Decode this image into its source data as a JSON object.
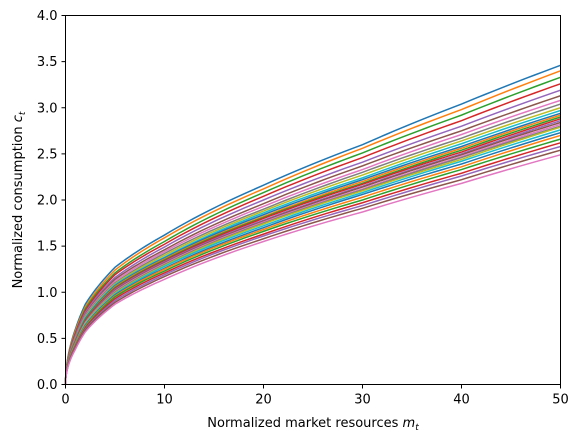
{
  "chart_data": {
    "type": "line",
    "title": "",
    "xlabel": "Normalized market resources",
    "xlabel_symbol": "m",
    "xlabel_subscript": "t",
    "ylabel": "Normalized consumption",
    "ylabel_symbol": "c",
    "ylabel_subscript": "t",
    "xlim": [
      0,
      50
    ],
    "ylim": [
      0,
      4.0
    ],
    "x_ticks": [
      "0",
      "10",
      "20",
      "30",
      "40",
      "50"
    ],
    "y_ticks": [
      "0.0",
      "0.5",
      "1.0",
      "1.5",
      "2.0",
      "2.5",
      "3.0",
      "3.5",
      "4.0"
    ],
    "grid": false,
    "legend": "none",
    "x": [
      0,
      1,
      2,
      5,
      10,
      20,
      30,
      40,
      50
    ],
    "series": [
      {
        "color": "#1f77b4",
        "values": [
          0,
          0.6,
          0.87,
          1.27,
          1.62,
          2.16,
          2.6,
          3.04,
          3.46
        ]
      },
      {
        "color": "#ff7f0e",
        "values": [
          0,
          0.58,
          0.84,
          1.24,
          1.59,
          2.12,
          2.56,
          2.98,
          3.4
        ]
      },
      {
        "color": "#2ca02c",
        "values": [
          0,
          0.56,
          0.82,
          1.21,
          1.55,
          2.08,
          2.51,
          2.92,
          3.33
        ]
      },
      {
        "color": "#d62728",
        "values": [
          0,
          0.55,
          0.8,
          1.19,
          1.52,
          2.04,
          2.46,
          2.86,
          3.26
        ]
      },
      {
        "color": "#9467bd",
        "values": [
          0,
          0.53,
          0.78,
          1.16,
          1.49,
          2.0,
          2.41,
          2.8,
          3.19
        ]
      },
      {
        "color": "#8c564b",
        "values": [
          0,
          0.52,
          0.76,
          1.14,
          1.46,
          1.96,
          2.37,
          2.75,
          3.13
        ]
      },
      {
        "color": "#e377c2",
        "values": [
          0,
          0.51,
          0.75,
          1.12,
          1.44,
          1.93,
          2.33,
          2.71,
          3.08
        ]
      },
      {
        "color": "#7f7f7f",
        "values": [
          0,
          0.5,
          0.74,
          1.1,
          1.42,
          1.9,
          2.3,
          2.67,
          3.04
        ]
      },
      {
        "color": "#bcbd22",
        "values": [
          0,
          0.49,
          0.73,
          1.09,
          1.4,
          1.88,
          2.27,
          2.64,
          3.0
        ]
      },
      {
        "color": "#17becf",
        "values": [
          0,
          0.49,
          0.72,
          1.08,
          1.38,
          1.86,
          2.24,
          2.61,
          2.97
        ]
      },
      {
        "color": "#1f77b4",
        "values": [
          0,
          0.48,
          0.71,
          1.07,
          1.37,
          1.84,
          2.22,
          2.58,
          2.94
        ]
      },
      {
        "color": "#ff7f0e",
        "values": [
          0,
          0.48,
          0.7,
          1.06,
          1.36,
          1.82,
          2.2,
          2.56,
          2.92
        ]
      },
      {
        "color": "#2ca02c",
        "values": [
          0,
          0.47,
          0.7,
          1.05,
          1.35,
          1.81,
          2.18,
          2.54,
          2.9
        ]
      },
      {
        "color": "#d62728",
        "values": [
          0,
          0.47,
          0.69,
          1.04,
          1.34,
          1.8,
          2.17,
          2.52,
          2.88
        ]
      },
      {
        "color": "#9467bd",
        "values": [
          0,
          0.46,
          0.68,
          1.03,
          1.33,
          1.78,
          2.15,
          2.5,
          2.86
        ]
      },
      {
        "color": "#8c564b",
        "values": [
          0,
          0.46,
          0.68,
          1.02,
          1.32,
          1.77,
          2.14,
          2.49,
          2.84
        ]
      },
      {
        "color": "#e377c2",
        "values": [
          0,
          0.45,
          0.67,
          1.01,
          1.31,
          1.76,
          2.12,
          2.47,
          2.82
        ]
      },
      {
        "color": "#7f7f7f",
        "values": [
          0,
          0.45,
          0.66,
          1.0,
          1.3,
          1.75,
          2.11,
          2.46,
          2.8
        ]
      },
      {
        "color": "#bcbd22",
        "values": [
          0,
          0.44,
          0.66,
          0.99,
          1.29,
          1.74,
          2.1,
          2.44,
          2.79
        ]
      },
      {
        "color": "#17becf",
        "values": [
          0,
          0.44,
          0.65,
          0.98,
          1.28,
          1.72,
          2.08,
          2.42,
          2.76
        ]
      },
      {
        "color": "#1f77b4",
        "values": [
          0,
          0.43,
          0.64,
          0.97,
          1.26,
          1.7,
          2.06,
          2.39,
          2.73
        ]
      },
      {
        "color": "#ff7f0e",
        "values": [
          0,
          0.43,
          0.63,
          0.96,
          1.25,
          1.68,
          2.03,
          2.36,
          2.7
        ]
      },
      {
        "color": "#2ca02c",
        "values": [
          0,
          0.42,
          0.62,
          0.95,
          1.23,
          1.66,
          2.0,
          2.33,
          2.66
        ]
      },
      {
        "color": "#d62728",
        "values": [
          0,
          0.41,
          0.61,
          0.93,
          1.21,
          1.63,
          1.97,
          2.29,
          2.62
        ]
      },
      {
        "color": "#9467bd",
        "values": [
          0,
          0.4,
          0.6,
          0.91,
          1.19,
          1.61,
          1.94,
          2.26,
          2.58
        ]
      },
      {
        "color": "#8c564b",
        "values": [
          0,
          0.39,
          0.59,
          0.89,
          1.17,
          1.58,
          1.91,
          2.22,
          2.54
        ]
      },
      {
        "color": "#e377c2",
        "values": [
          0,
          0.38,
          0.57,
          0.87,
          1.14,
          1.55,
          1.87,
          2.18,
          2.49
        ]
      }
    ]
  }
}
